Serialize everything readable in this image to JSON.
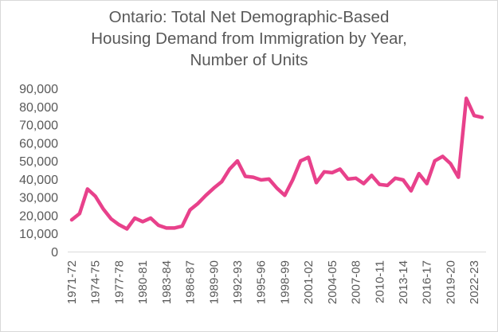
{
  "chart_data": {
    "type": "line",
    "title_lines": [
      "Ontario: Total Net Demographic-Based",
      "Housing Demand from Immigration by Year,",
      "Number of Units"
    ],
    "xlabel": "",
    "ylabel": "",
    "ylim": [
      0,
      90000
    ],
    "yticks": [
      0,
      10000,
      20000,
      30000,
      40000,
      50000,
      60000,
      70000,
      80000,
      90000
    ],
    "ytick_labels": [
      "0",
      "10,000",
      "20,000",
      "30,000",
      "40,000",
      "50,000",
      "60,000",
      "70,000",
      "80,000",
      "90,000"
    ],
    "grid": false,
    "legend": "none",
    "line_color": "#e8418b",
    "categories": [
      "1971-72",
      "1972-73",
      "1973-74",
      "1974-75",
      "1975-76",
      "1976-77",
      "1977-78",
      "1978-79",
      "1979-80",
      "1980-81",
      "1981-82",
      "1982-83",
      "1983-84",
      "1984-85",
      "1985-86",
      "1986-87",
      "1987-88",
      "1988-89",
      "1989-90",
      "1990-91",
      "1991-92",
      "1992-93",
      "1993-94",
      "1994-95",
      "1995-96",
      "1996-97",
      "1997-98",
      "1998-99",
      "1999-00",
      "2000-01",
      "2001-02",
      "2002-03",
      "2003-04",
      "2004-05",
      "2005-06",
      "2006-07",
      "2007-08",
      "2008-09",
      "2009-10",
      "2010-11",
      "2011-12",
      "2012-13",
      "2013-14",
      "2014-15",
      "2015-16",
      "2016-17",
      "2017-18",
      "2018-19",
      "2019-20",
      "2020-21",
      "2021-22",
      "2022-23",
      "2023-24"
    ],
    "tick_label_indices": [
      0,
      3,
      6,
      9,
      12,
      15,
      18,
      21,
      24,
      27,
      30,
      33,
      36,
      39,
      42,
      45,
      48,
      51
    ],
    "series": [
      {
        "name": "Total Net Demographic-Based Housing Demand from Immigration",
        "values": [
          17500,
          21000,
          34500,
          30500,
          23500,
          18000,
          14800,
          12500,
          18500,
          16500,
          18500,
          14500,
          13000,
          13000,
          14000,
          23000,
          26500,
          31000,
          35000,
          38500,
          45500,
          50000,
          41500,
          41000,
          39500,
          40000,
          35000,
          31000,
          39500,
          50000,
          52000,
          38000,
          44000,
          43500,
          45500,
          40000,
          40500,
          37500,
          42000,
          37000,
          36500,
          40500,
          39500,
          33500,
          43000,
          37500,
          50000,
          52500,
          48500,
          41000,
          84500,
          75000,
          74000
        ]
      }
    ]
  }
}
